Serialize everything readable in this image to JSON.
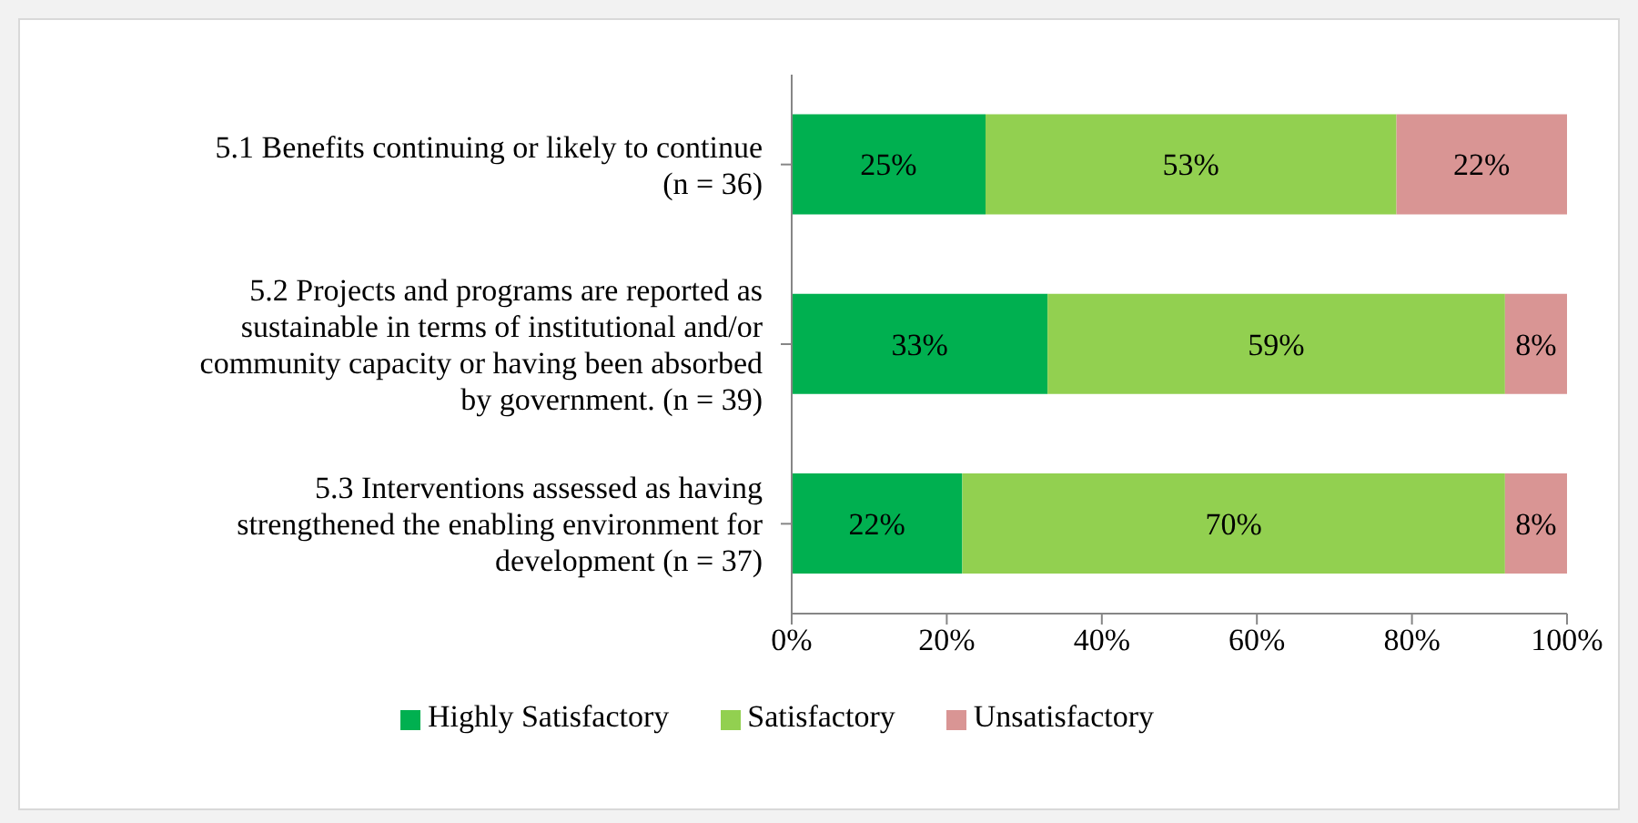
{
  "chart_data": {
    "type": "bar",
    "orientation": "horizontal",
    "stacked": true,
    "categories": [
      "5.1 Benefits continuing or likely to continue (n = 36)",
      "5.2 Projects and programs are reported as sustainable in terms of institutional and/or community capacity or having been absorbed by government. (n = 39)",
      "5.3 Interventions assessed as having strengthened the enabling environment for development  (n = 37)"
    ],
    "series": [
      {
        "name": "Highly Satisfactory",
        "color": "#00b050",
        "values": [
          25,
          33,
          22
        ],
        "value_labels": [
          "25%",
          "33%",
          "22%"
        ]
      },
      {
        "name": "Satisfactory",
        "color": "#92d050",
        "values": [
          53,
          59,
          70
        ],
        "value_labels": [
          "53%",
          "59%",
          "70%"
        ]
      },
      {
        "name": "Unsatisfactory",
        "color": "#d99594",
        "values": [
          22,
          8,
          8
        ],
        "value_labels": [
          "22%",
          "8%",
          "8%"
        ]
      }
    ],
    "xlim": [
      0,
      100
    ],
    "xticks": [
      {
        "value": 0,
        "label": "0%"
      },
      {
        "value": 20,
        "label": "20%"
      },
      {
        "value": 40,
        "label": "40%"
      },
      {
        "value": 60,
        "label": "60%"
      },
      {
        "value": 80,
        "label": "80%"
      },
      {
        "value": 100,
        "label": "100%"
      }
    ],
    "grid": false,
    "legend": "bottom"
  }
}
